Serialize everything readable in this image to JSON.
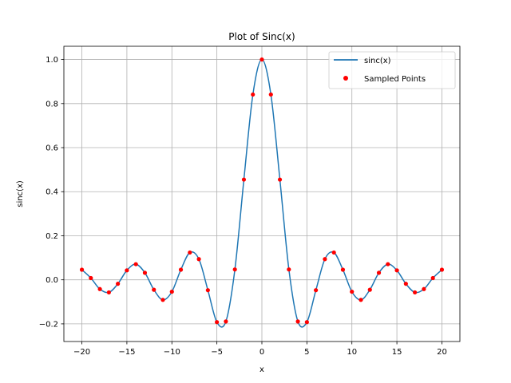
{
  "chart_data": {
    "type": "line",
    "title": "Plot of Sinc(x)",
    "xlabel": "x",
    "ylabel": "sinc(x)",
    "xlim": [
      -22,
      22
    ],
    "ylim": [
      -0.28,
      1.06
    ],
    "xticks": [
      -20,
      -15,
      -10,
      -5,
      0,
      5,
      10,
      15,
      20
    ],
    "yticks": [
      -0.2,
      0.0,
      0.2,
      0.4,
      0.6,
      0.8,
      1.0
    ],
    "grid": true,
    "legend_position": "top-right",
    "legend": [
      "sinc(x)",
      "Sampled Points"
    ],
    "colors": {
      "line": "#1f77b4",
      "points": "#ff0000"
    },
    "series": [
      {
        "name": "sinc(x)",
        "kind": "line",
        "x": [
          -20,
          -19,
          -18,
          -17,
          -16,
          -15,
          -14,
          -13,
          -12,
          -11,
          -10,
          -9,
          -8,
          -7,
          -6,
          -5,
          -4,
          -3,
          -2,
          -1,
          0,
          1,
          2,
          3,
          4,
          5,
          6,
          7,
          8,
          9,
          10,
          11,
          12,
          13,
          14,
          15,
          16,
          17,
          18,
          19,
          20
        ],
        "y": [
          0.046,
          0.008,
          -0.042,
          -0.057,
          -0.018,
          0.043,
          0.071,
          0.032,
          -0.045,
          -0.091,
          -0.054,
          0.046,
          0.124,
          0.094,
          -0.047,
          -0.192,
          -0.189,
          0.047,
          0.455,
          0.841,
          1.0,
          0.841,
          0.455,
          0.047,
          -0.189,
          -0.192,
          -0.047,
          0.094,
          0.124,
          0.046,
          -0.054,
          -0.091,
          -0.045,
          0.032,
          0.071,
          0.043,
          -0.018,
          -0.057,
          -0.042,
          0.008,
          0.046
        ]
      },
      {
        "name": "Sampled Points",
        "kind": "scatter",
        "x": [
          -20,
          -19,
          -18,
          -17,
          -16,
          -15,
          -14,
          -13,
          -12,
          -11,
          -10,
          -9,
          -8,
          -7,
          -6,
          -5,
          -4,
          -3,
          -2,
          -1,
          0,
          1,
          2,
          3,
          4,
          5,
          6,
          7,
          8,
          9,
          10,
          11,
          12,
          13,
          14,
          15,
          16,
          17,
          18,
          19,
          20
        ],
        "y": [
          0.046,
          0.008,
          -0.042,
          -0.057,
          -0.018,
          0.043,
          0.071,
          0.032,
          -0.045,
          -0.091,
          -0.054,
          0.046,
          0.124,
          0.094,
          -0.047,
          -0.192,
          -0.189,
          0.047,
          0.455,
          0.841,
          1.0,
          0.841,
          0.455,
          0.047,
          -0.189,
          -0.192,
          -0.047,
          0.094,
          0.124,
          0.046,
          -0.054,
          -0.091,
          -0.045,
          0.032,
          0.071,
          0.043,
          -0.018,
          -0.057,
          -0.042,
          0.008,
          0.046
        ]
      }
    ]
  }
}
